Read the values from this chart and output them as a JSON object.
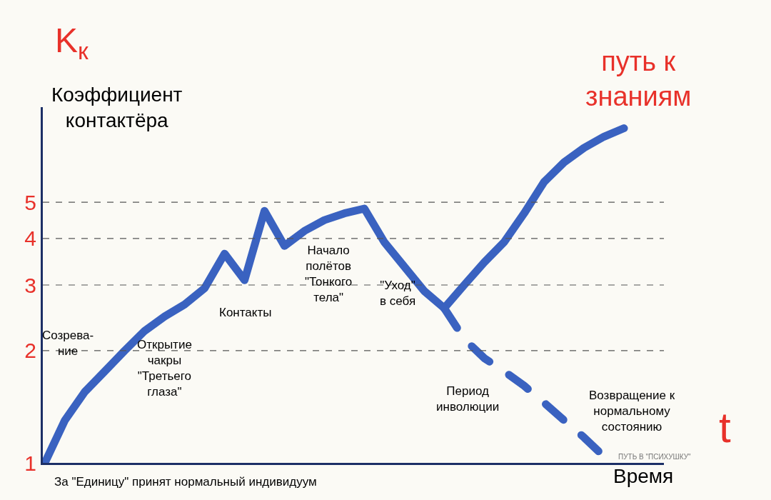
{
  "chart_data": {
    "type": "line",
    "ylabel": "Коэффициент контактёра",
    "xlabel": "Время",
    "categories": [
      null,
      null,
      null,
      null,
      null,
      null,
      null,
      null,
      null,
      null,
      null,
      null,
      null,
      null,
      null,
      null,
      null,
      null,
      null,
      null,
      null,
      null,
      null,
      null,
      null,
      null,
      null,
      null,
      null,
      null
    ],
    "series": [
      {
        "color": "#3a62c0",
        "line_style": "solid",
        "values": [
          1.0,
          1.3,
          1.55,
          1.76,
          2.0,
          2.26,
          2.47,
          2.66,
          2.94,
          3.64,
          3.09,
          4.74,
          3.82,
          4.19,
          4.48,
          4.67,
          4.81,
          3.91,
          3.36,
          2.89,
          2.6,
          null,
          null,
          null,
          null,
          null,
          null,
          null,
          null,
          null
        ]
      },
      {
        "name": "путь к знаниям",
        "color": "#3a62c0",
        "line_style": "solid",
        "values": [
          null,
          null,
          null,
          null,
          null,
          null,
          null,
          null,
          null,
          null,
          null,
          null,
          null,
          null,
          null,
          null,
          null,
          null,
          null,
          null,
          2.6,
          3.0,
          3.45,
          3.91,
          4.67,
          5.67,
          6.4,
          7.0,
          7.5,
          7.9
        ]
      },
      {
        "name": "ПУТЬ В \"ПСИХУШКУ\"",
        "color": "#3a62c0",
        "line_style": "dashed",
        "values": [
          null,
          null,
          null,
          null,
          null,
          null,
          null,
          null,
          null,
          null,
          null,
          null,
          null,
          null,
          null,
          null,
          null,
          null,
          null,
          null,
          2.6,
          2.15,
          1.91,
          1.76,
          1.61,
          1.45,
          1.3,
          1.17,
          1.04,
          null
        ]
      }
    ],
    "log": "y",
    "ylim": [
      1,
      9
    ],
    "yticks": [
      1,
      2,
      3,
      4,
      5
    ],
    "grid": false,
    "marker": "none",
    "ref_lines": [
      {
        "axis": "y",
        "value": 2,
        "color": "#555555",
        "line_style": "dashed"
      },
      {
        "axis": "y",
        "value": 3,
        "color": "#555555",
        "line_style": "dashed"
      },
      {
        "axis": "y",
        "value": 4,
        "color": "#555555",
        "line_style": "dashed"
      },
      {
        "axis": "y",
        "value": 5,
        "color": "#555555",
        "line_style": "dashed"
      }
    ],
    "annotations": [
      "K$_{к}$",
      "Созрева-\nние",
      "Открытие\nчакры\n\"Третьего\nглаза\"",
      "Контакты",
      "Начало\nполётов\n\"Тонкого\nтела\"",
      "\"Уход\"\nв себя",
      "Период\nинволюции",
      "Возвращение к\nнормальному\nсостоянию",
      "За \"Единицу\" принят нормальный индивидуум",
      "t"
    ]
  }
}
